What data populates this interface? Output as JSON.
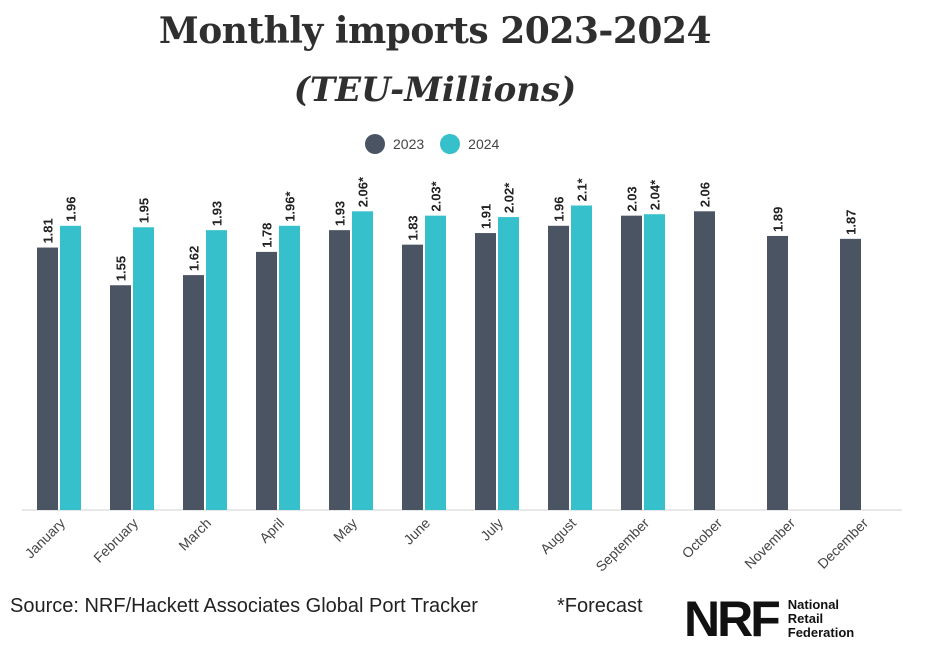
{
  "header": {
    "title": "Monthly imports 2023-2024",
    "subtitle": "(TEU-Millions)"
  },
  "legend": {
    "items": [
      {
        "label": "2023",
        "color": "#4a5463"
      },
      {
        "label": "2024",
        "color": "#35c0cc"
      }
    ]
  },
  "footer": {
    "source": "Source: NRF/Hackett Associates Global Port Tracker",
    "note": "*Forecast"
  },
  "logo": {
    "mark": "NRF",
    "words": [
      "National",
      "Retail",
      "Federation"
    ]
  },
  "chart_data": {
    "type": "bar",
    "categories": [
      "January",
      "February",
      "March",
      "April",
      "May",
      "June",
      "July",
      "August",
      "September",
      "October",
      "November",
      "December"
    ],
    "series": [
      {
        "name": "2023",
        "color": "#4a5463",
        "values": [
          1.81,
          1.55,
          1.62,
          1.78,
          1.93,
          1.83,
          1.91,
          1.96,
          2.03,
          2.06,
          1.89,
          1.87
        ],
        "labels": [
          "1.81",
          "1.55",
          "1.62",
          "1.78",
          "1.93",
          "1.83",
          "1.91",
          "1.96",
          "2.03",
          "2.06",
          "1.89",
          "1.87"
        ]
      },
      {
        "name": "2024",
        "color": "#35c0cc",
        "values": [
          1.96,
          1.95,
          1.93,
          1.96,
          2.06,
          2.03,
          2.02,
          2.1,
          2.04,
          null,
          null,
          null
        ],
        "labels": [
          "1.96",
          "1.95",
          "1.93",
          "1.96*",
          "2.06*",
          "2.03*",
          "2.02*",
          "2.1*",
          "2.04*",
          null,
          null,
          null
        ]
      }
    ],
    "title": "Monthly imports 2023-2024",
    "subtitle": "(TEU-Millions)",
    "ylim": [
      0,
      2.2
    ],
    "grid": false,
    "legend_position": "top-center"
  }
}
